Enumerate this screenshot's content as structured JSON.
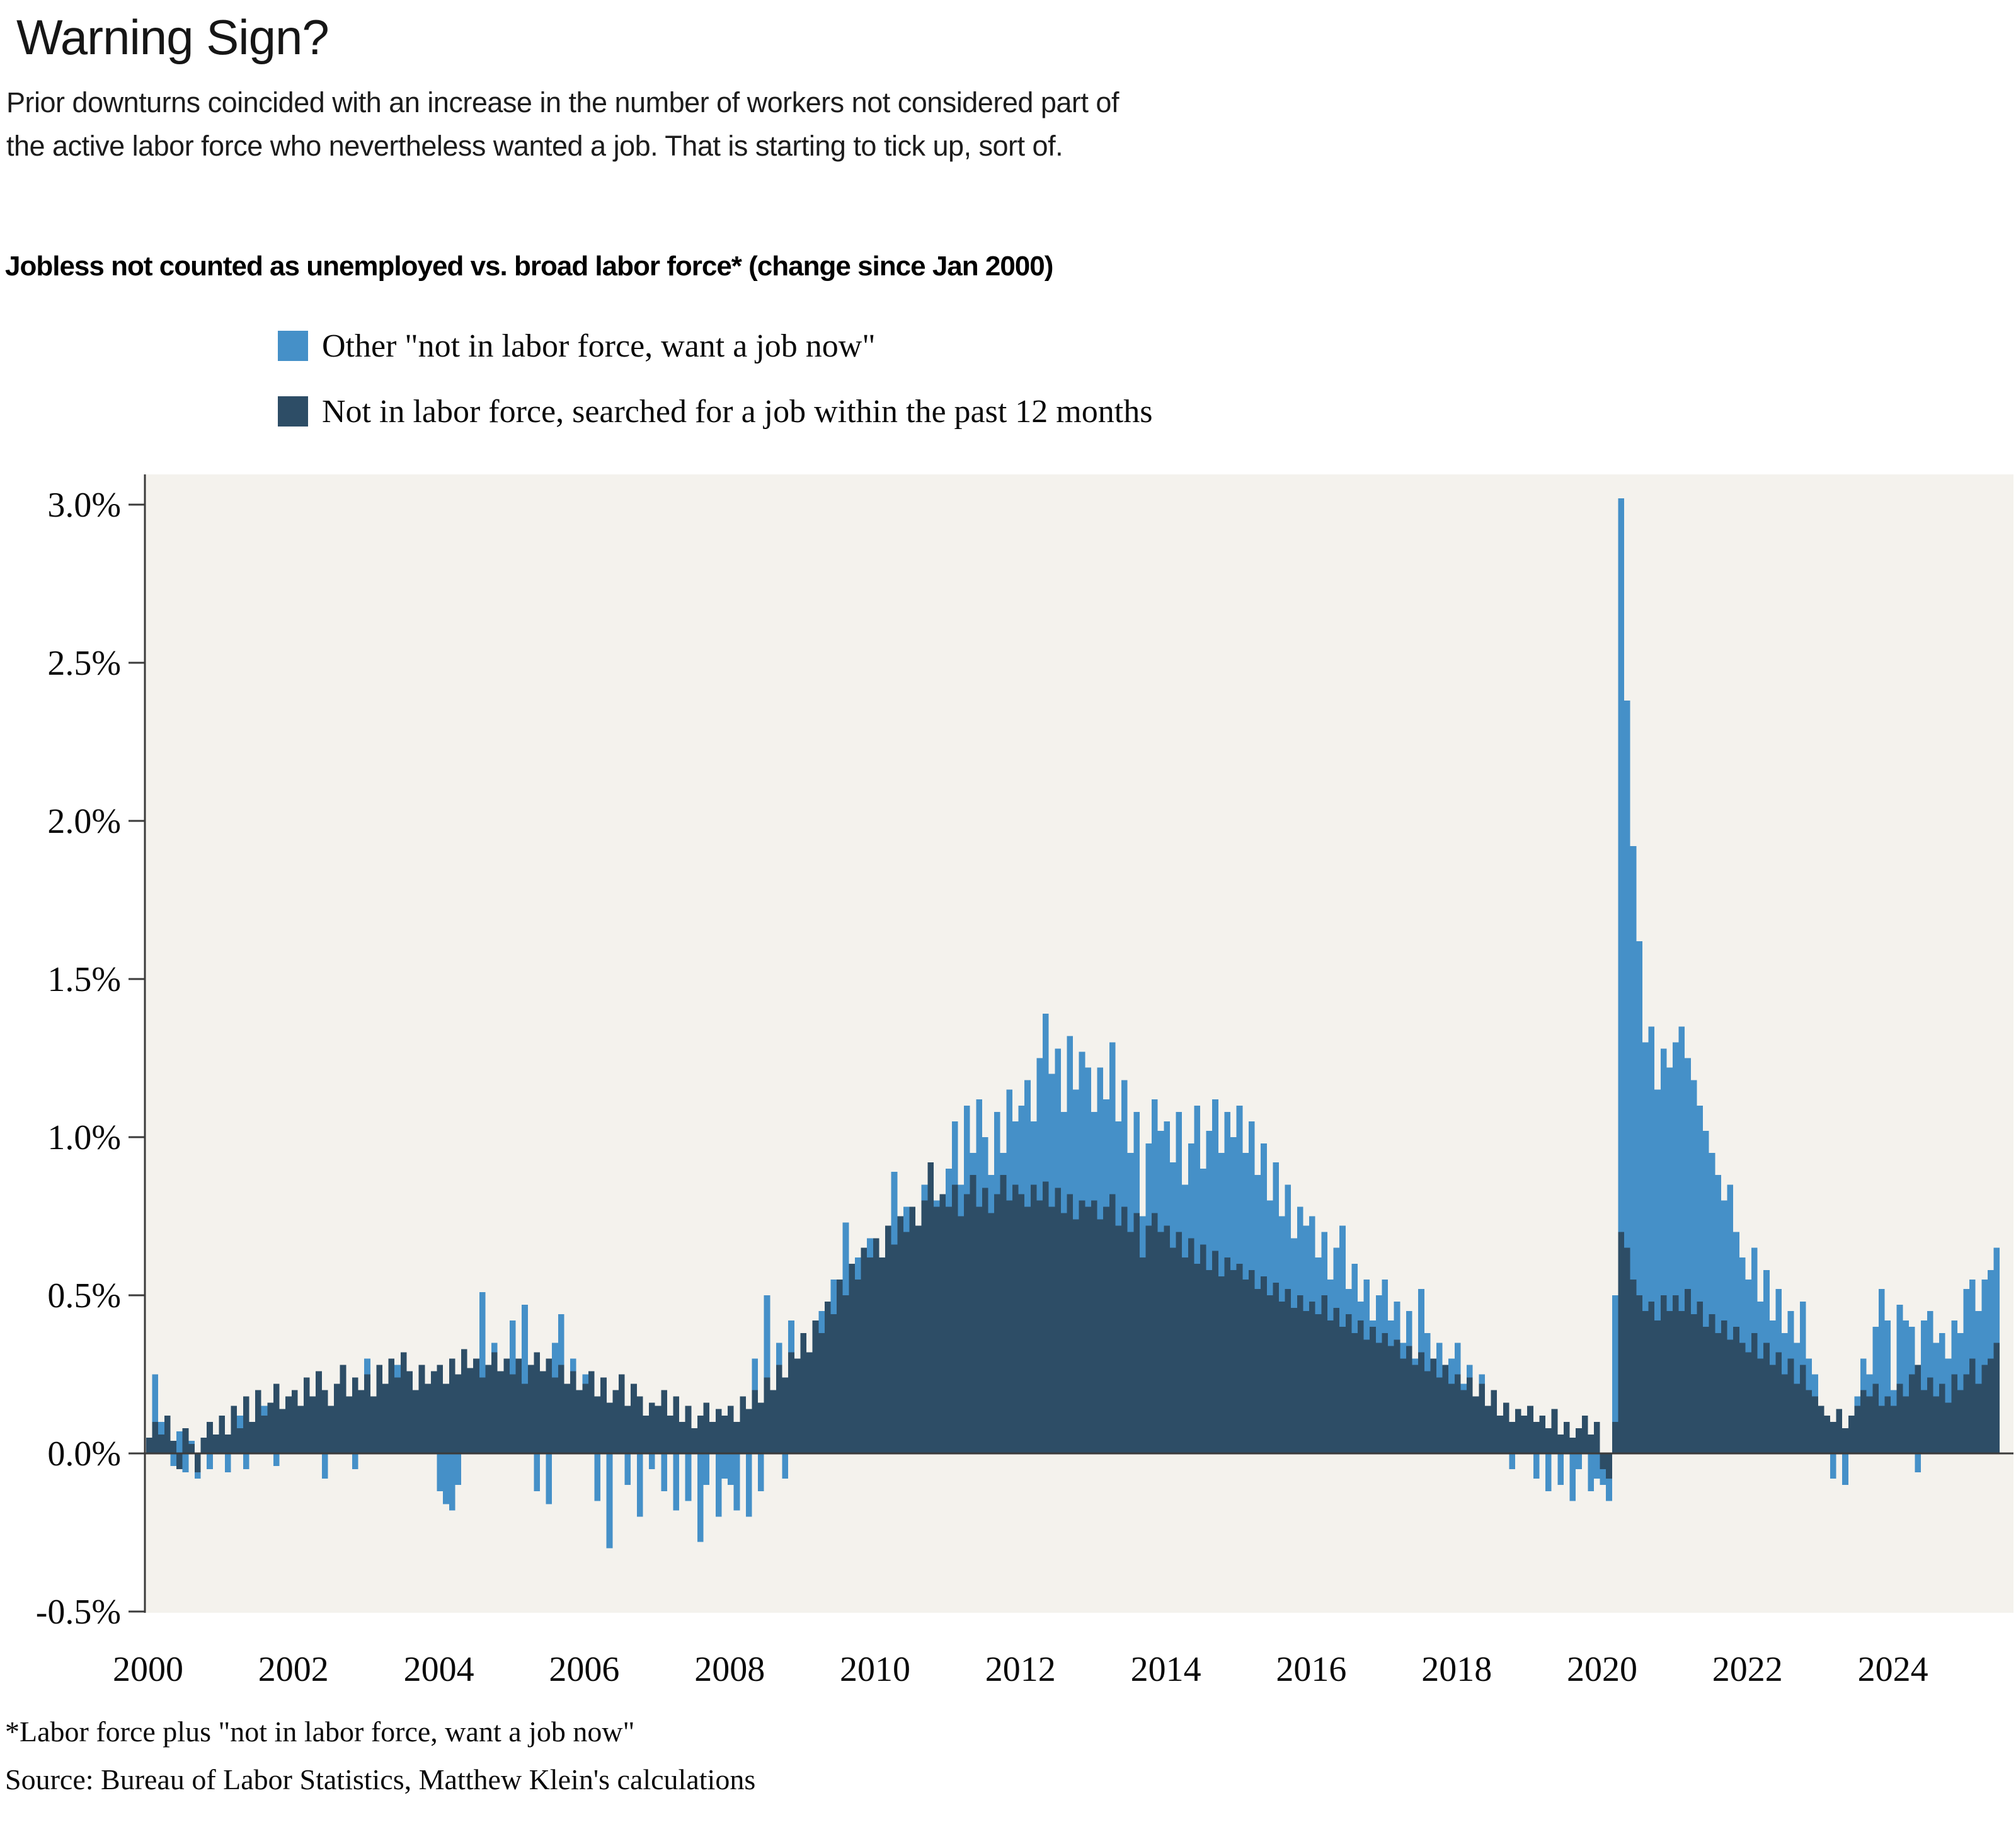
{
  "header": {
    "title": "Warning Sign?",
    "subtitle": "Prior downturns coincided with an increase in the number of workers not considered part of the active labor force who nevertheless wanted a job. That is starting to tick up, sort of.",
    "chart_heading": "Jobless not counted as unemployed vs. broad labor force* (change since Jan 2000)"
  },
  "legend": [
    {
      "label": "Other \"not in labor force, want a job now\"",
      "color": "#4590c8"
    },
    {
      "label": "Not in labor force, searched for a job within the past 12 months",
      "color": "#2d4d66"
    }
  ],
  "footnotes": {
    "note": "*Labor force plus \"not in labor force, want a job now\"",
    "source": "Source: Bureau of Labor Statistics, Matthew Klein's calculations"
  },
  "chart_data": {
    "type": "bar",
    "mode": "overlaid-monthly-bars (light series drawn behind, dark in front, common zero baseline)",
    "title": "Jobless not counted as unemployed vs. broad labor force* (change since Jan 2000)",
    "unit": "%",
    "start_month": "2000-01",
    "end_month": "2025-06",
    "frequency": "monthly",
    "ylim": [
      -0.5,
      3.1
    ],
    "grid": false,
    "plot_background": "#f4f2ed",
    "axis_color": "#3b3b3b",
    "y_ticks": [
      {
        "label": "3.0%",
        "value": 3.0
      },
      {
        "label": "2.5%",
        "value": 2.5
      },
      {
        "label": "2.0%",
        "value": 2.0
      },
      {
        "label": "1.5%",
        "value": 1.5
      },
      {
        "label": "1.0%",
        "value": 1.0
      },
      {
        "label": "0.5%",
        "value": 0.5
      },
      {
        "label": "0.0%",
        "value": 0.0
      },
      {
        "label": "-0.5%",
        "value": -0.5
      }
    ],
    "x_ticks": [
      {
        "label": "2000",
        "year": 2000
      },
      {
        "label": "2002",
        "year": 2002
      },
      {
        "label": "2004",
        "year": 2004
      },
      {
        "label": "2006",
        "year": 2006
      },
      {
        "label": "2008",
        "year": 2008
      },
      {
        "label": "2010",
        "year": 2010
      },
      {
        "label": "2012",
        "year": 2012
      },
      {
        "label": "2014",
        "year": 2014
      },
      {
        "label": "2016",
        "year": 2016
      },
      {
        "label": "2018",
        "year": 2018
      },
      {
        "label": "2020",
        "year": 2020
      },
      {
        "label": "2022",
        "year": 2022
      },
      {
        "label": "2024",
        "year": 2024
      }
    ],
    "series": [
      {
        "name": "Other \"not in labor force, want a job now\"",
        "color": "#4590c8",
        "z": "back",
        "values": [
          0.02,
          0.25,
          0.1,
          0.03,
          -0.04,
          0.07,
          -0.06,
          0.04,
          -0.08,
          0.05,
          -0.05,
          0.03,
          0.1,
          -0.06,
          0.05,
          0.12,
          -0.05,
          0.08,
          0.03,
          0.15,
          0.06,
          -0.04,
          0.1,
          0.05,
          0.18,
          0.08,
          0.22,
          0.05,
          0.15,
          -0.08,
          0.1,
          0.2,
          0.06,
          0.15,
          -0.05,
          0.12,
          0.3,
          0.12,
          0.25,
          0.08,
          0.18,
          0.28,
          0.1,
          0.22,
          0.15,
          0.08,
          0.2,
          0.12,
          -0.12,
          -0.16,
          -0.18,
          -0.1,
          0.05,
          0.15,
          0.08,
          0.51,
          0.2,
          0.35,
          0.1,
          0.28,
          0.42,
          0.15,
          0.47,
          0.1,
          -0.12,
          0.25,
          -0.16,
          0.35,
          0.44,
          0.12,
          0.3,
          0.08,
          0.25,
          0.1,
          -0.15,
          0.18,
          -0.3,
          0.05,
          0.15,
          -0.1,
          0.08,
          -0.2,
          0.12,
          -0.05,
          0.1,
          -0.12,
          0.05,
          -0.18,
          0.08,
          -0.15,
          0.03,
          -0.28,
          -0.1,
          0.05,
          -0.2,
          -0.08,
          -0.1,
          -0.18,
          0.08,
          -0.2,
          0.3,
          -0.12,
          0.5,
          0.15,
          0.35,
          -0.08,
          0.42,
          0.25,
          0.1,
          0.25,
          0.15,
          0.45,
          0.2,
          0.55,
          0.3,
          0.73,
          0.4,
          0.62,
          0.45,
          0.68,
          0.6,
          0.48,
          0.7,
          0.89,
          0.65,
          0.78,
          0.58,
          0.72,
          0.85,
          0.68,
          0.8,
          0.75,
          0.9,
          1.05,
          0.85,
          1.1,
          0.95,
          1.12,
          1.0,
          0.88,
          1.08,
          0.95,
          1.15,
          1.05,
          1.1,
          1.18,
          1.05,
          1.25,
          1.39,
          1.2,
          1.28,
          1.08,
          1.32,
          1.15,
          1.27,
          1.22,
          1.08,
          1.22,
          1.12,
          1.3,
          1.05,
          1.18,
          0.95,
          1.08,
          0.75,
          0.98,
          1.12,
          1.02,
          1.05,
          0.92,
          1.08,
          0.85,
          0.98,
          1.1,
          0.9,
          1.02,
          1.12,
          0.95,
          1.08,
          1.0,
          1.1,
          0.95,
          1.05,
          0.88,
          0.98,
          0.8,
          0.92,
          0.75,
          0.85,
          0.68,
          0.78,
          0.72,
          0.75,
          0.62,
          0.7,
          0.55,
          0.65,
          0.72,
          0.52,
          0.6,
          0.48,
          0.55,
          0.42,
          0.5,
          0.55,
          0.42,
          0.48,
          0.35,
          0.45,
          0.3,
          0.52,
          0.38,
          0.28,
          0.35,
          0.22,
          0.3,
          0.35,
          0.22,
          0.28,
          0.15,
          0.25,
          0.1,
          0.2,
          0.05,
          0.15,
          -0.05,
          0.1,
          0.02,
          0.08,
          -0.08,
          0.05,
          -0.12,
          0.02,
          -0.1,
          0.06,
          -0.15,
          -0.05,
          0.03,
          -0.12,
          -0.08,
          -0.1,
          -0.15,
          0.5,
          3.02,
          2.38,
          1.92,
          1.62,
          1.3,
          1.35,
          1.15,
          1.28,
          1.22,
          1.3,
          1.35,
          1.25,
          1.18,
          1.1,
          1.02,
          0.95,
          0.88,
          0.8,
          0.85,
          0.7,
          0.62,
          0.55,
          0.65,
          0.48,
          0.58,
          0.42,
          0.52,
          0.38,
          0.45,
          0.35,
          0.48,
          0.3,
          0.25,
          0.15,
          0.08,
          -0.08,
          0.12,
          -0.1,
          0.05,
          0.18,
          0.3,
          0.25,
          0.4,
          0.52,
          0.42,
          0.2,
          0.47,
          0.42,
          0.4,
          -0.06,
          0.42,
          0.45,
          0.35,
          0.38,
          0.3,
          0.42,
          0.38,
          0.52,
          0.55,
          0.45,
          0.55,
          0.58,
          0.65
        ]
      },
      {
        "name": "Not in labor force, searched for a job within the past 12 months",
        "color": "#2d4d66",
        "z": "front",
        "values": [
          0.05,
          0.1,
          0.06,
          0.12,
          0.04,
          -0.05,
          0.08,
          0.03,
          -0.06,
          0.05,
          0.1,
          0.06,
          0.12,
          0.06,
          0.15,
          0.08,
          0.18,
          0.1,
          0.2,
          0.12,
          0.16,
          0.22,
          0.14,
          0.18,
          0.2,
          0.15,
          0.24,
          0.18,
          0.26,
          0.2,
          0.15,
          0.22,
          0.28,
          0.18,
          0.24,
          0.2,
          0.25,
          0.18,
          0.28,
          0.22,
          0.3,
          0.24,
          0.32,
          0.26,
          0.2,
          0.28,
          0.22,
          0.26,
          0.28,
          0.22,
          0.3,
          0.25,
          0.33,
          0.27,
          0.3,
          0.24,
          0.28,
          0.32,
          0.26,
          0.3,
          0.25,
          0.3,
          0.22,
          0.28,
          0.32,
          0.26,
          0.3,
          0.24,
          0.28,
          0.22,
          0.26,
          0.2,
          0.22,
          0.26,
          0.18,
          0.24,
          0.16,
          0.2,
          0.25,
          0.15,
          0.22,
          0.18,
          0.12,
          0.16,
          0.15,
          0.2,
          0.12,
          0.18,
          0.1,
          0.15,
          0.08,
          0.12,
          0.16,
          0.1,
          0.14,
          0.12,
          0.15,
          0.1,
          0.18,
          0.14,
          0.2,
          0.16,
          0.24,
          0.2,
          0.28,
          0.24,
          0.32,
          0.3,
          0.38,
          0.32,
          0.42,
          0.38,
          0.48,
          0.44,
          0.55,
          0.5,
          0.6,
          0.55,
          0.65,
          0.62,
          0.68,
          0.62,
          0.72,
          0.66,
          0.75,
          0.7,
          0.78,
          0.72,
          0.8,
          0.92,
          0.78,
          0.82,
          0.78,
          0.85,
          0.75,
          0.82,
          0.88,
          0.78,
          0.84,
          0.76,
          0.82,
          0.88,
          0.8,
          0.85,
          0.82,
          0.78,
          0.85,
          0.8,
          0.86,
          0.78,
          0.84,
          0.76,
          0.82,
          0.74,
          0.8,
          0.78,
          0.8,
          0.74,
          0.78,
          0.82,
          0.72,
          0.78,
          0.7,
          0.76,
          0.62,
          0.72,
          0.76,
          0.7,
          0.72,
          0.65,
          0.7,
          0.62,
          0.68,
          0.6,
          0.66,
          0.58,
          0.64,
          0.56,
          0.62,
          0.58,
          0.6,
          0.55,
          0.58,
          0.52,
          0.56,
          0.5,
          0.54,
          0.48,
          0.52,
          0.46,
          0.5,
          0.45,
          0.48,
          0.44,
          0.5,
          0.42,
          0.46,
          0.4,
          0.44,
          0.38,
          0.42,
          0.36,
          0.4,
          0.35,
          0.38,
          0.34,
          0.36,
          0.3,
          0.34,
          0.28,
          0.32,
          0.26,
          0.3,
          0.24,
          0.28,
          0.22,
          0.25,
          0.2,
          0.24,
          0.18,
          0.22,
          0.15,
          0.2,
          0.12,
          0.16,
          0.1,
          0.14,
          0.12,
          0.15,
          0.1,
          0.12,
          0.08,
          0.14,
          0.06,
          0.1,
          0.05,
          0.08,
          0.12,
          0.06,
          0.1,
          -0.05,
          -0.08,
          0.1,
          0.7,
          0.65,
          0.55,
          0.5,
          0.45,
          0.48,
          0.42,
          0.5,
          0.45,
          0.5,
          0.45,
          0.52,
          0.44,
          0.48,
          0.4,
          0.44,
          0.38,
          0.42,
          0.36,
          0.4,
          0.35,
          0.32,
          0.38,
          0.3,
          0.35,
          0.28,
          0.32,
          0.25,
          0.3,
          0.22,
          0.28,
          0.2,
          0.18,
          0.15,
          0.12,
          0.1,
          0.14,
          0.08,
          0.12,
          0.15,
          0.2,
          0.18,
          0.22,
          0.15,
          0.18,
          0.15,
          0.22,
          0.18,
          0.25,
          0.28,
          0.2,
          0.24,
          0.18,
          0.22,
          0.16,
          0.25,
          0.2,
          0.25,
          0.3,
          0.22,
          0.28,
          0.3,
          0.35
        ]
      }
    ]
  }
}
